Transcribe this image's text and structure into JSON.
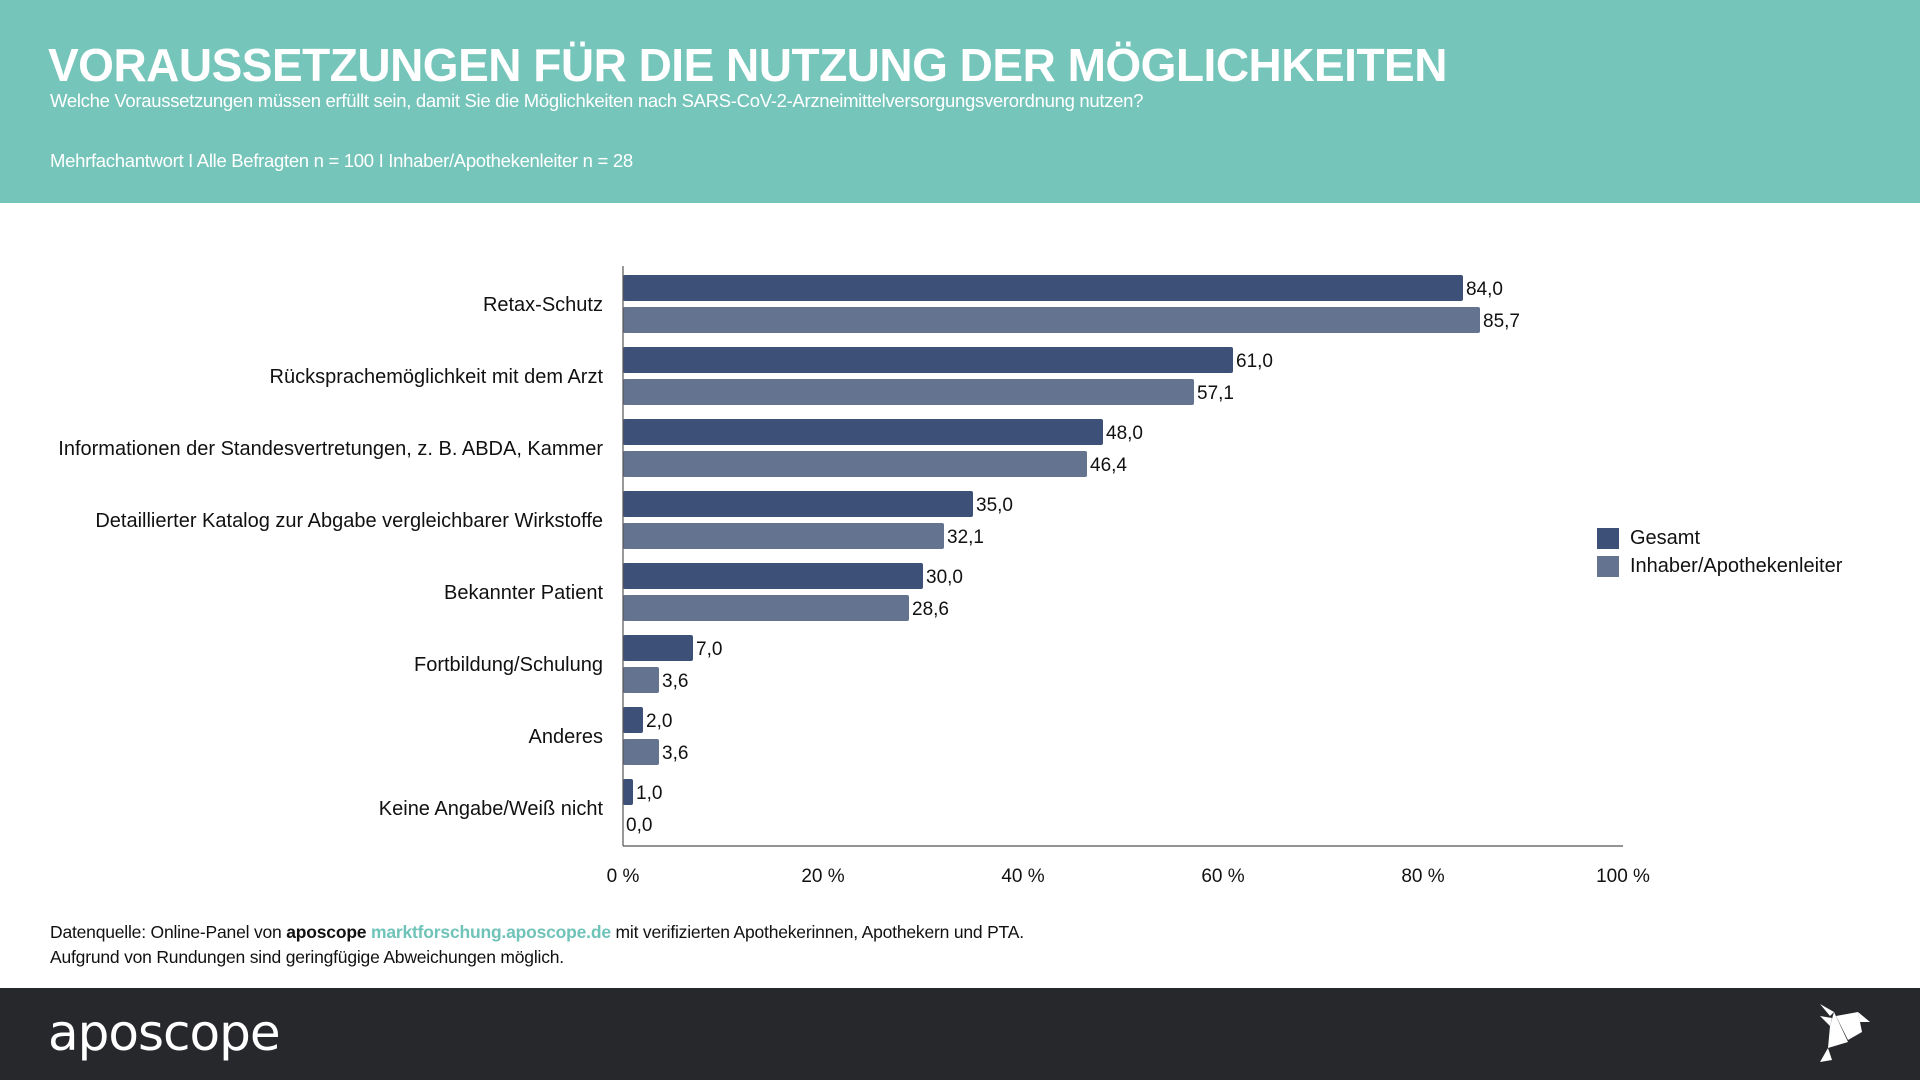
{
  "header": {
    "title": "VORAUSSETZUNGEN FÜR DIE NUTZUNG DER MÖGLICHKEITEN",
    "subtitle": "Welche Voraussetzungen müssen erfüllt sein, damit Sie die Möglichkeiten nach SARS-CoV-2-Arzneimittelversorgungsverordnung nutzen?",
    "base": "Mehrfachantwort I Alle Befragten n = 100 I Inhaber/Apothekenleiter n = 28"
  },
  "colors": {
    "header_bg": "#76c5bb",
    "series_gesamt": "#3d5178",
    "series_inhaber": "#64738f",
    "link": "#6fc3b8",
    "footer_bg": "#27282c"
  },
  "chart_data": {
    "type": "bar",
    "orientation": "horizontal",
    "title": "VORAUSSETZUNGEN FÜR DIE NUTZUNG DER MÖGLICHKEITEN",
    "xlabel": "",
    "ylabel": "",
    "xlim": [
      0,
      100
    ],
    "x_ticks": [
      0,
      20,
      40,
      60,
      80,
      100
    ],
    "x_tick_labels": [
      "0 %",
      "20 %",
      "40 %",
      "60 %",
      "80 %",
      "100 %"
    ],
    "grid": false,
    "legend_position": "right",
    "categories": [
      "Retax-Schutz",
      "Rücksprachemöglichkeit mit dem Arzt",
      "Informationen der Standesvertretungen, z. B. ABDA, Kammer",
      "Detaillierter Katalog zur Abgabe vergleichbarer Wirkstoffe",
      "Bekannter Patient",
      "Fortbildung/Schulung",
      "Anderes",
      "Keine Angabe/Weiß nicht"
    ],
    "series": [
      {
        "name": "Gesamt",
        "color": "#3d5178",
        "values": [
          84.0,
          61.0,
          48.0,
          35.0,
          30.0,
          7.0,
          2.0,
          1.0
        ],
        "labels": [
          "84,0",
          "61,0",
          "48,0",
          "35,0",
          "30,0",
          "7,0",
          "2,0",
          "1,0"
        ]
      },
      {
        "name": "Inhaber/Apothekenleiter",
        "color": "#64738f",
        "values": [
          85.7,
          57.1,
          46.4,
          32.1,
          28.6,
          3.6,
          3.6,
          0.0
        ],
        "labels": [
          "85,7",
          "57,1",
          "46,4",
          "32,1",
          "28,6",
          "3,6",
          "3,6",
          "0,0"
        ]
      }
    ]
  },
  "source": {
    "prefix": "Datenquelle: Online-Panel von ",
    "brand": "aposcope",
    "link": "marktforschung.aposcope.de",
    "suffix": " mit verifizierten Apothekerinnen, Apothekern und PTA.",
    "note": "Aufgrund von Rundungen sind geringfügige Abweichungen möglich."
  },
  "footer": {
    "logo": "aposcope",
    "icon": "origami-bird-icon"
  }
}
